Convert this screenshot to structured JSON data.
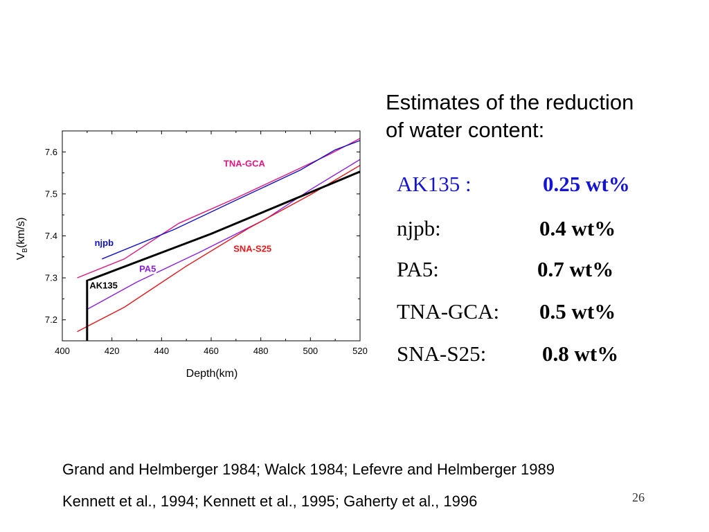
{
  "heading": {
    "line1": "Estimates of the reduction",
    "line2": "of water content:"
  },
  "estimates": [
    {
      "label": "AK135 :",
      "value": "0.25 wt%",
      "color": "#1414d2"
    },
    {
      "label": "njpb:",
      "value": "0.4 wt%",
      "color": "#000000"
    },
    {
      "label": "PA5:",
      "value": "0.7 wt%",
      "color": "#000000"
    },
    {
      "label": "TNA-GCA:",
      "value": "0.5 wt%",
      "color": "#000000"
    },
    {
      "label": "SNA-S25:",
      "value": "0.8 wt%",
      "color": "#000000"
    }
  ],
  "references": {
    "line1": "Grand and Helmberger 1984; Walck 1984; Lefevre and Helmberger 1989",
    "line2": "Kennett et al., 1994; Kennett et al., 1995; Gaherty et al., 1996"
  },
  "page_number": "26",
  "chart_data": {
    "type": "line",
    "xlabel": "Depth(km)",
    "ylabel_main": "V",
    "ylabel_sub": "B",
    "ylabel_rest": "(km/s)",
    "xlim": [
      400,
      520
    ],
    "ylim": [
      7.15,
      7.65
    ],
    "xticks": [
      400,
      420,
      440,
      460,
      480,
      500,
      520
    ],
    "yticks": [
      7.2,
      7.3,
      7.4,
      7.5,
      7.6
    ],
    "ytick_labels": [
      "7.2",
      "7.3",
      "7.4",
      "7.5",
      "7.6"
    ],
    "grid": false,
    "series": [
      {
        "name": "TNA-GCA",
        "color": "#e0157e",
        "width": 1.4,
        "points": [
          [
            406,
            7.3
          ],
          [
            425,
            7.345
          ],
          [
            447,
            7.43
          ],
          [
            470,
            7.49
          ],
          [
            490,
            7.545
          ],
          [
            508,
            7.595
          ],
          [
            520,
            7.632
          ]
        ]
      },
      {
        "name": "njpb",
        "color": "#1010c8",
        "width": 1.4,
        "points": [
          [
            416,
            7.345
          ],
          [
            445,
            7.415
          ],
          [
            470,
            7.485
          ],
          [
            496,
            7.557
          ],
          [
            510,
            7.605
          ],
          [
            520,
            7.627
          ]
        ]
      },
      {
        "name": "PA5",
        "color": "#8a1ee0",
        "width": 1.4,
        "points": [
          [
            410,
            7.225
          ],
          [
            430,
            7.29
          ],
          [
            455,
            7.36
          ],
          [
            482,
            7.44
          ],
          [
            500,
            7.51
          ],
          [
            520,
            7.582
          ]
        ]
      },
      {
        "name": "SNA-S25",
        "color": "#e2181c",
        "width": 1.4,
        "points": [
          [
            406,
            7.172
          ],
          [
            425,
            7.23
          ],
          [
            450,
            7.328
          ],
          [
            475,
            7.418
          ],
          [
            500,
            7.498
          ],
          [
            520,
            7.568
          ]
        ]
      },
      {
        "name": "AK135",
        "color": "#000000",
        "width": 3,
        "points": [
          [
            410,
            7.15
          ],
          [
            410,
            7.293
          ],
          [
            460,
            7.405
          ],
          [
            520,
            7.553
          ]
        ]
      }
    ],
    "annotations": [
      {
        "text": "TNA-GCA",
        "color": "#e0157e",
        "x": 465,
        "y": 7.565
      },
      {
        "text": "njpb",
        "color": "#1010c8",
        "x": 413,
        "y": 7.376
      },
      {
        "text": "PA5",
        "color": "#8a1ee0",
        "x": 431,
        "y": 7.314
      },
      {
        "text": "SNA-S25",
        "color": "#e2181c",
        "x": 469,
        "y": 7.362
      },
      {
        "text": "AK135",
        "color": "#000000",
        "x": 411,
        "y": 7.275
      }
    ]
  }
}
